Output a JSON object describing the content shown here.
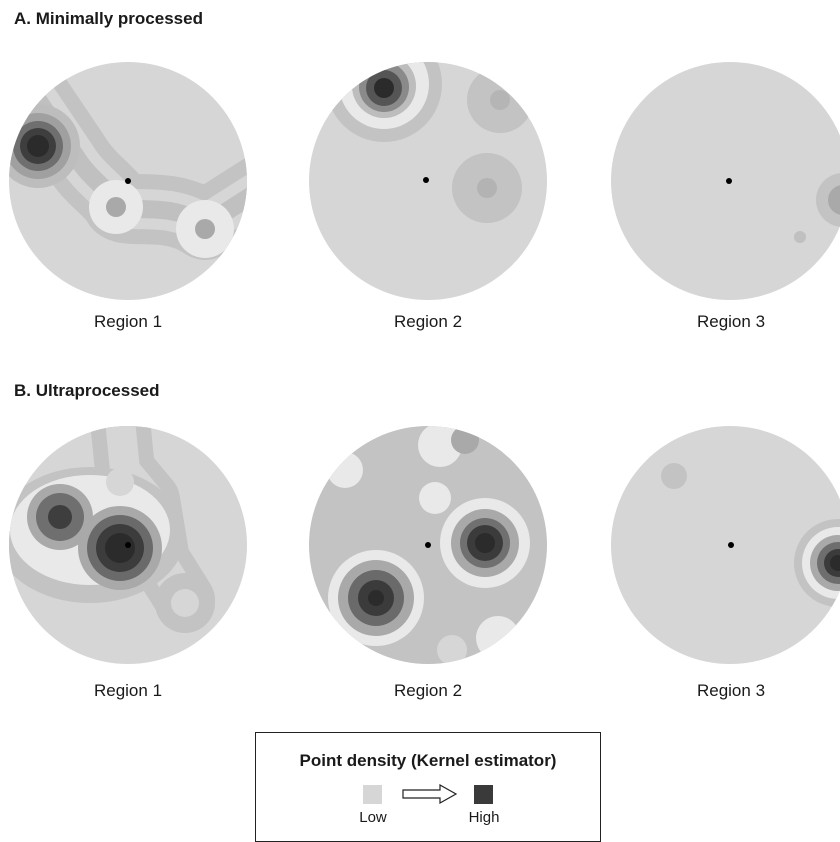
{
  "sections": [
    {
      "title": "A. Minimally processed",
      "regions": [
        "Region 1",
        "Region 2",
        "Region 3"
      ]
    },
    {
      "title": "B. Ultraprocessed",
      "regions": [
        "Region 1",
        "Region 2",
        "Region 3"
      ]
    }
  ],
  "legend": {
    "title": "Point density (Kernel estimator)",
    "low_label": "Low",
    "high_label": "High"
  },
  "colors": {
    "density_levels": [
      "#d6d6d6",
      "#c3c3c3",
      "#e9e9e9",
      "#a9a9a9",
      "#868686",
      "#555555",
      "#2b2b2b"
    ],
    "center_point": "#000000",
    "low": "#d6d6d6",
    "high": "#3a3a3a"
  }
}
